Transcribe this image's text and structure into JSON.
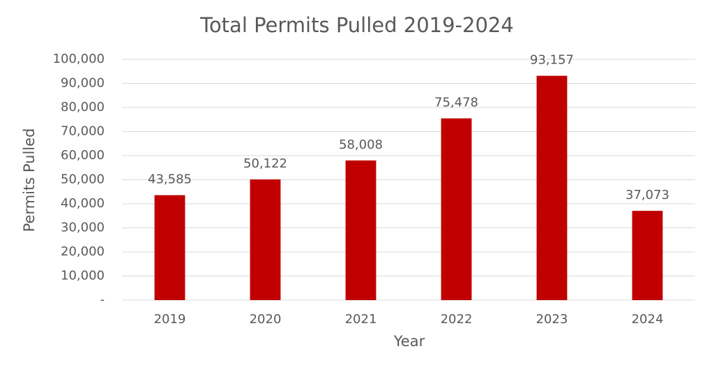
{
  "chart_data": {
    "type": "bar",
    "title": "Total Permits Pulled 2019-2024",
    "x_label": "Year",
    "y_label": "Permits Pulled",
    "categories": [
      "2019",
      "2020",
      "2021",
      "2022",
      "2023",
      "2024"
    ],
    "values": [
      43585,
      50122,
      58008,
      75478,
      93157,
      37073
    ],
    "value_labels": [
      "43,585",
      "50,122",
      "58,008",
      "75,478",
      "93,157",
      "37,073"
    ],
    "color": "#c00000",
    "ylim": [
      0,
      100000
    ],
    "yticks": [
      {
        "value": 0,
        "label": "-"
      },
      {
        "value": 10000,
        "label": "10,000"
      },
      {
        "value": 20000,
        "label": "20,000"
      },
      {
        "value": 30000,
        "label": "30,000"
      },
      {
        "value": 40000,
        "label": "40,000"
      },
      {
        "value": 50000,
        "label": "50,000"
      },
      {
        "value": 60000,
        "label": "60,000"
      },
      {
        "value": 70000,
        "label": "70,000"
      },
      {
        "value": 80000,
        "label": "80,000"
      },
      {
        "value": 90000,
        "label": "90,000"
      },
      {
        "value": 100000,
        "label": "100,000"
      }
    ],
    "grid": true
  }
}
